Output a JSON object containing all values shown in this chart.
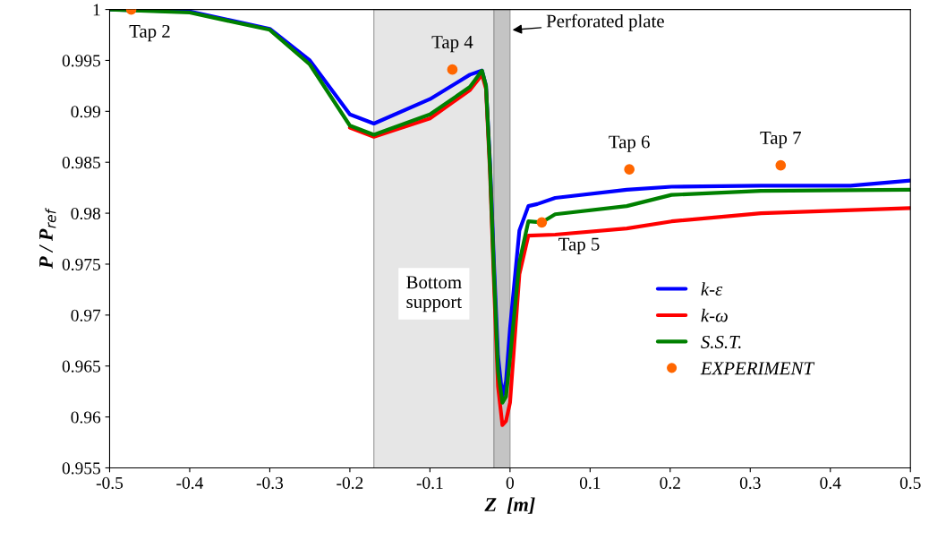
{
  "chart_data": {
    "type": "line",
    "xlabel": "Z  [m]",
    "ylabel": "P / P$_{ref}$",
    "xlim": [
      -0.5,
      0.5
    ],
    "xticks": [
      -0.5,
      -0.4,
      -0.3,
      -0.2,
      -0.1,
      0,
      0.1,
      0.2,
      0.3,
      0.4,
      0.5
    ],
    "ylim": [
      0.955,
      1
    ],
    "yticks": [
      0.955,
      0.96,
      0.965,
      0.97,
      0.975,
      0.98,
      0.985,
      0.99,
      0.995,
      1
    ],
    "grid": false,
    "legend": "right",
    "marker": "none",
    "line_style": "solid",
    "bands": [
      {
        "axis": "x",
        "from": -0.17,
        "to": -0.02,
        "label": "Bottom\nsupport",
        "color": "#e6e6e6"
      },
      {
        "axis": "x",
        "from": -0.02,
        "to": 0,
        "label": "Perforated plate",
        "color": "#c4c4c4"
      }
    ],
    "series": [
      {
        "name": "k-ε",
        "color": "#0000ff",
        "x": [
          -0.5,
          -0.4,
          -0.3,
          -0.25,
          -0.2,
          -0.17,
          -0.1,
          -0.05,
          -0.035,
          -0.03,
          -0.025,
          -0.02,
          -0.015,
          -0.0095,
          -0.005,
          0,
          0.0117,
          0.0229,
          0.034,
          0.0564,
          0.1458,
          0.2017,
          0.3134,
          0.4251,
          0.5
        ],
        "values": [
          1.0,
          0.9998,
          0.9981,
          0.995,
          0.9897,
          0.9888,
          0.9912,
          0.9936,
          0.994,
          0.9925,
          0.985,
          0.975,
          0.966,
          0.962,
          0.9635,
          0.9687,
          0.9783,
          0.9807,
          0.9809,
          0.9815,
          0.9823,
          0.9826,
          0.9827,
          0.9827,
          0.9832
        ]
      },
      {
        "name": "k-ω",
        "color": "#ff0000",
        "x": [
          -0.2,
          -0.17,
          -0.1,
          -0.05,
          -0.035,
          -0.03,
          -0.025,
          -0.02,
          -0.015,
          -0.0095,
          -0.005,
          0,
          0.0117,
          0.0229,
          0.0564,
          0.1458,
          0.2017,
          0.3134,
          0.5
        ],
        "values": [
          0.9884,
          0.9875,
          0.9893,
          0.9921,
          0.9936,
          0.9922,
          0.984,
          0.973,
          0.963,
          0.9592,
          0.9596,
          0.9614,
          0.974,
          0.9778,
          0.9779,
          0.9785,
          0.9792,
          0.98,
          0.9805
        ]
      },
      {
        "name": "S.S.T.",
        "color": "#008000",
        "x": [
          -0.5,
          -0.4,
          -0.3,
          -0.25,
          -0.2,
          -0.17,
          -0.1,
          -0.05,
          -0.035,
          -0.03,
          -0.025,
          -0.02,
          -0.015,
          -0.0095,
          -0.005,
          0,
          0.0117,
          0.0229,
          0.0397,
          0.0564,
          0.1458,
          0.2017,
          0.3134,
          0.5
        ],
        "values": [
          1.0,
          0.9997,
          0.998,
          0.9946,
          0.9886,
          0.9877,
          0.9897,
          0.9924,
          0.994,
          0.9925,
          0.9845,
          0.974,
          0.9645,
          0.9614,
          0.962,
          0.9658,
          0.9752,
          0.9792,
          0.9791,
          0.9799,
          0.9807,
          0.9818,
          0.9822,
          0.9823
        ]
      },
      {
        "name": "EXPERIMENT",
        "type": "scatter",
        "marker": "circle",
        "color": "#ff6600",
        "x": [
          -0.473,
          -0.072,
          0.0397,
          0.149,
          0.338
        ],
        "values": [
          1.0,
          0.9941,
          0.9791,
          0.9843,
          0.9847
        ]
      }
    ],
    "annotations": [
      {
        "text": "Tap 2",
        "x": -0.473,
        "y": 1.0
      },
      {
        "text": "Tap 4",
        "x": -0.072,
        "y": 0.9941
      },
      {
        "text": "Tap 5",
        "x": 0.0397,
        "y": 0.9791
      },
      {
        "text": "Tap 6",
        "x": 0.149,
        "y": 0.9843
      },
      {
        "text": "Tap 7",
        "x": 0.338,
        "y": 0.9847
      }
    ]
  }
}
